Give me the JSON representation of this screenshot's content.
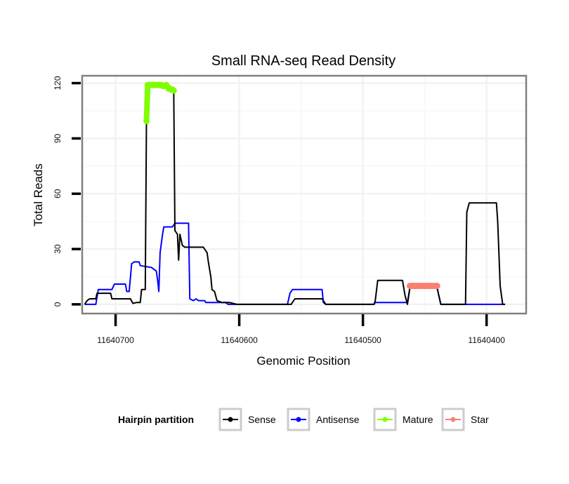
{
  "chart_data": {
    "type": "line",
    "title": "Small RNA-seq Read Density",
    "xlabel": "Genomic Position",
    "ylabel": "Total Reads",
    "x_reversed": true,
    "xlim": [
      11640727,
      11640368
    ],
    "ylim": [
      -5,
      124
    ],
    "x_ticks": [
      11640700,
      11640600,
      11640500,
      11640400
    ],
    "x_tick_labels": [
      "11640700",
      "11640600",
      "11640500",
      "11640400"
    ],
    "y_ticks": [
      0,
      30,
      60,
      90,
      120
    ],
    "y_tick_labels": [
      "0",
      "30",
      "60",
      "90",
      "120"
    ],
    "grid": true,
    "legend": {
      "title": "Hairpin partition",
      "position": "bottom",
      "entries": [
        {
          "label": "Sense",
          "color": "#000000"
        },
        {
          "label": "Antisense",
          "color": "#0000ff"
        },
        {
          "label": "Mature",
          "color": "#7fff00"
        },
        {
          "label": "Star",
          "color": "#fa8072"
        }
      ]
    },
    "series": [
      {
        "name": "Sense",
        "color": "#000000",
        "style": "line",
        "points": [
          [
            11640725,
            0
          ],
          [
            11640723,
            2
          ],
          [
            11640721,
            3
          ],
          [
            11640716,
            3
          ],
          [
            11640715,
            6
          ],
          [
            11640704,
            6
          ],
          [
            11640703,
            3
          ],
          [
            11640688,
            3
          ],
          [
            11640686,
            0.5
          ],
          [
            11640683,
            1
          ],
          [
            11640680,
            1
          ],
          [
            11640679,
            8
          ],
          [
            11640676,
            8
          ],
          [
            11640675,
            100
          ],
          [
            11640674,
            119
          ],
          [
            11640660,
            119
          ],
          [
            11640653,
            117
          ],
          [
            11640652,
            40
          ],
          [
            11640650,
            38
          ],
          [
            11640649,
            24
          ],
          [
            11640648,
            38
          ],
          [
            11640646,
            32
          ],
          [
            11640644,
            31
          ],
          [
            11640629,
            31
          ],
          [
            11640626,
            28
          ],
          [
            11640625,
            23
          ],
          [
            11640623,
            15
          ],
          [
            11640622,
            8
          ],
          [
            11640620,
            7
          ],
          [
            11640618,
            2
          ],
          [
            11640614,
            1
          ],
          [
            11640608,
            1
          ],
          [
            11640602,
            0
          ],
          [
            11640558,
            0
          ],
          [
            11640557,
            1
          ],
          [
            11640555,
            3
          ],
          [
            11640533,
            3
          ],
          [
            11640531,
            1
          ],
          [
            11640530,
            0
          ],
          [
            11640491,
            0
          ],
          [
            11640490,
            2
          ],
          [
            11640488,
            13
          ],
          [
            11640468,
            13
          ],
          [
            11640466,
            5
          ],
          [
            11640464,
            0
          ],
          [
            11640462,
            9
          ],
          [
            11640440,
            9
          ],
          [
            11640437,
            0
          ],
          [
            11640417,
            0
          ],
          [
            11640416,
            50
          ],
          [
            11640414,
            55
          ],
          [
            11640392,
            55
          ],
          [
            11640391,
            45
          ],
          [
            11640389,
            10
          ],
          [
            11640387,
            0
          ],
          [
            11640385,
            0
          ]
        ]
      },
      {
        "name": "Antisense",
        "color": "#0000ff",
        "style": "line",
        "points": [
          [
            11640725,
            0
          ],
          [
            11640716,
            0
          ],
          [
            11640714,
            8
          ],
          [
            11640703,
            8
          ],
          [
            11640701,
            11
          ],
          [
            11640692,
            11
          ],
          [
            11640691,
            7
          ],
          [
            11640689,
            7
          ],
          [
            11640687,
            22
          ],
          [
            11640685,
            23
          ],
          [
            11640681,
            23
          ],
          [
            11640680,
            21
          ],
          [
            11640671,
            20
          ],
          [
            11640667,
            18
          ],
          [
            11640666,
            13
          ],
          [
            11640665,
            7
          ],
          [
            11640664,
            28
          ],
          [
            11640662,
            38
          ],
          [
            11640661,
            42
          ],
          [
            11640654,
            42
          ],
          [
            11640652,
            44
          ],
          [
            11640641,
            44
          ],
          [
            11640640,
            3
          ],
          [
            11640637,
            2
          ],
          [
            11640635,
            3
          ],
          [
            11640633,
            2
          ],
          [
            11640628,
            2
          ],
          [
            11640627,
            1
          ],
          [
            11640611,
            1
          ],
          [
            11640609,
            0
          ],
          [
            11640561,
            0
          ],
          [
            11640559,
            6
          ],
          [
            11640557,
            8
          ],
          [
            11640533,
            8
          ],
          [
            11640532,
            1
          ],
          [
            11640530,
            0
          ],
          [
            11640491,
            0
          ],
          [
            11640490,
            1
          ],
          [
            11640464,
            1
          ],
          [
            11640462,
            9
          ],
          [
            11640440,
            9
          ],
          [
            11640437,
            0
          ],
          [
            11640387,
            0
          ],
          [
            11640385,
            0
          ]
        ]
      },
      {
        "name": "Mature",
        "color": "#7fff00",
        "style": "points",
        "points": [
          [
            11640675,
            99.5
          ],
          [
            11640674,
            119
          ],
          [
            11640673,
            119
          ],
          [
            11640672,
            119
          ],
          [
            11640671,
            119
          ],
          [
            11640670,
            119
          ],
          [
            11640669,
            119
          ],
          [
            11640668,
            119
          ],
          [
            11640667,
            119
          ],
          [
            11640666,
            119
          ],
          [
            11640665,
            119
          ],
          [
            11640664,
            119
          ],
          [
            11640663,
            119
          ],
          [
            11640662,
            118.5
          ],
          [
            11640661,
            118.5
          ],
          [
            11640660,
            118.5
          ],
          [
            11640659,
            119
          ],
          [
            11640658,
            118
          ],
          [
            11640657,
            117
          ],
          [
            11640656,
            117
          ],
          [
            11640655,
            116.5
          ],
          [
            11640654,
            116.5
          ],
          [
            11640653,
            116
          ]
        ]
      },
      {
        "name": "Star",
        "color": "#fa8072",
        "style": "points",
        "points": [
          [
            11640462,
            10
          ],
          [
            11640461,
            10
          ],
          [
            11640460,
            10
          ],
          [
            11640459,
            10
          ],
          [
            11640458,
            10
          ],
          [
            11640457,
            10
          ],
          [
            11640456,
            10
          ],
          [
            11640455,
            10
          ],
          [
            11640454,
            10
          ],
          [
            11640453,
            10
          ],
          [
            11640452,
            10
          ],
          [
            11640451,
            10
          ],
          [
            11640450,
            10
          ],
          [
            11640449,
            10
          ],
          [
            11640448,
            10
          ],
          [
            11640447,
            10
          ],
          [
            11640446,
            10
          ],
          [
            11640445,
            10
          ],
          [
            11640444,
            10
          ],
          [
            11640443,
            10
          ],
          [
            11640442,
            10
          ],
          [
            11640441,
            10
          ],
          [
            11640440,
            10
          ]
        ]
      }
    ]
  }
}
